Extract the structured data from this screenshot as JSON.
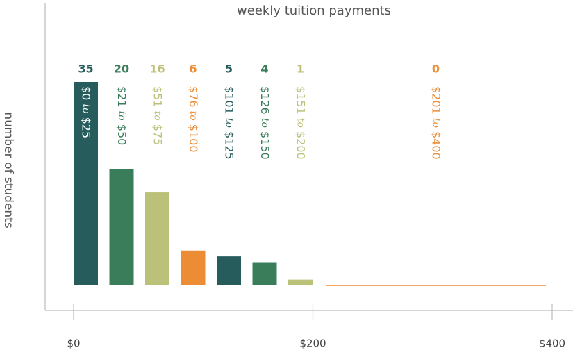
{
  "chart_data": {
    "type": "bar",
    "title": "weekly tuition payments",
    "ylabel": "number of students",
    "categories": [
      "$0 to $25",
      "$21 to $50",
      "$51 to $75",
      "$76 to $100",
      "$101 to $125",
      "$126 to $150",
      "$151 to $200",
      "$201 to $400"
    ],
    "values": [
      35,
      20,
      16,
      6,
      5,
      4,
      1,
      0
    ],
    "colors": [
      "#265c5b",
      "#3a7d5a",
      "#bcc17a",
      "#ec8c35",
      "#265c5b",
      "#3a7d5a",
      "#bcc17a",
      "#ec8c35"
    ],
    "ylim": [
      0,
      35
    ],
    "xlim": [
      0,
      400
    ],
    "xticks": [
      {
        "value": 0,
        "label": "$0"
      },
      {
        "value": 200,
        "label": "$200"
      },
      {
        "value": 400,
        "label": "$400"
      }
    ]
  }
}
